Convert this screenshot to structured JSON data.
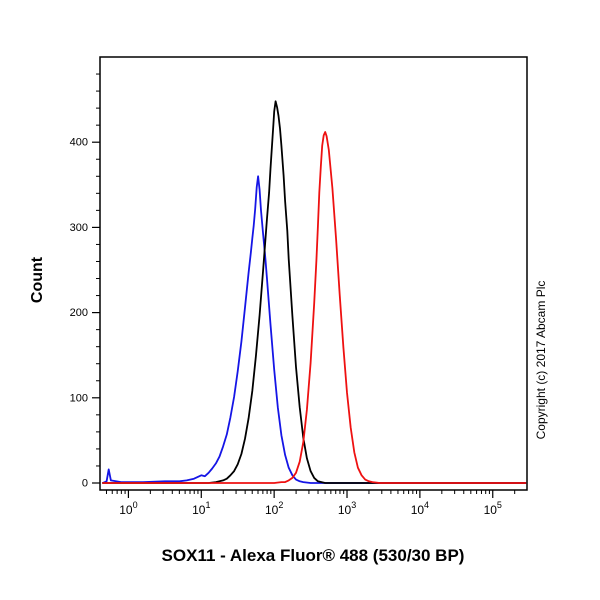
{
  "window": {
    "background": "#ffffff"
  },
  "chart_data": {
    "type": "line",
    "chart_kind": "flow-cytometry-histogram",
    "title": "",
    "xlabel": "SOX11 - Alexa Fluor® 488 (530/30 BP)",
    "ylabel": "Count",
    "copyright": "Copyright (c) 2017 Abcam Plc",
    "x_scale": "log10",
    "x_range_log": [
      -0.39,
      5.47
    ],
    "y_range": [
      0,
      500
    ],
    "y_ticks": [
      0,
      100,
      200,
      300,
      400
    ],
    "y_minor_step": 20,
    "x_ticks": [
      {
        "log": 0,
        "base": "10",
        "exp": "0",
        "label": "10^0"
      },
      {
        "log": 1,
        "base": "10",
        "exp": "1",
        "label": "10^1"
      },
      {
        "log": 2,
        "base": "10",
        "exp": "2",
        "label": "10^2"
      },
      {
        "log": 3,
        "base": "10",
        "exp": "3",
        "label": "10^3"
      },
      {
        "log": 4,
        "base": "10",
        "exp": "4",
        "label": "10^4"
      },
      {
        "log": 5,
        "base": "10",
        "exp": "5",
        "label": "10^5"
      }
    ],
    "grid": false,
    "legend": "none",
    "series": [
      {
        "name": "blue",
        "color": "#1515e6",
        "peak": {
          "x_log": 1.78,
          "count": 360
        },
        "points": [
          [
            -0.35,
            0
          ],
          [
            -0.3,
            2
          ],
          [
            -0.27,
            16
          ],
          [
            -0.24,
            3
          ],
          [
            -0.1,
            1
          ],
          [
            0.2,
            1
          ],
          [
            0.5,
            2
          ],
          [
            0.7,
            2
          ],
          [
            0.8,
            3
          ],
          [
            0.9,
            5
          ],
          [
            1.0,
            9
          ],
          [
            1.05,
            8
          ],
          [
            1.1,
            12
          ],
          [
            1.15,
            17
          ],
          [
            1.2,
            23
          ],
          [
            1.25,
            31
          ],
          [
            1.3,
            43
          ],
          [
            1.35,
            57
          ],
          [
            1.4,
            77
          ],
          [
            1.45,
            101
          ],
          [
            1.5,
            131
          ],
          [
            1.55,
            166
          ],
          [
            1.6,
            206
          ],
          [
            1.65,
            247
          ],
          [
            1.68,
            270
          ],
          [
            1.7,
            287
          ],
          [
            1.72,
            302
          ],
          [
            1.74,
            322
          ],
          [
            1.76,
            347
          ],
          [
            1.78,
            360
          ],
          [
            1.8,
            344
          ],
          [
            1.82,
            320
          ],
          [
            1.85,
            291
          ],
          [
            1.88,
            263
          ],
          [
            1.9,
            241
          ],
          [
            1.95,
            186
          ],
          [
            2.0,
            133
          ],
          [
            2.05,
            89
          ],
          [
            2.1,
            56
          ],
          [
            2.15,
            33
          ],
          [
            2.2,
            18
          ],
          [
            2.25,
            9
          ],
          [
            2.3,
            4
          ],
          [
            2.35,
            2
          ],
          [
            2.4,
            1
          ],
          [
            2.5,
            0
          ],
          [
            5.45,
            0
          ]
        ]
      },
      {
        "name": "black",
        "color": "#000000",
        "peak": {
          "x_log": 2.02,
          "count": 448
        },
        "points": [
          [
            -0.35,
            0
          ],
          [
            1.1,
            0
          ],
          [
            1.2,
            1
          ],
          [
            1.3,
            3
          ],
          [
            1.35,
            5
          ],
          [
            1.4,
            9
          ],
          [
            1.45,
            14
          ],
          [
            1.5,
            22
          ],
          [
            1.55,
            34
          ],
          [
            1.6,
            52
          ],
          [
            1.65,
            76
          ],
          [
            1.7,
            108
          ],
          [
            1.75,
            149
          ],
          [
            1.8,
            197
          ],
          [
            1.85,
            251
          ],
          [
            1.9,
            309
          ],
          [
            1.93,
            341
          ],
          [
            1.95,
            369
          ],
          [
            1.97,
            396
          ],
          [
            1.99,
            421
          ],
          [
            2.0,
            436
          ],
          [
            2.02,
            448
          ],
          [
            2.04,
            441
          ],
          [
            2.06,
            431
          ],
          [
            2.08,
            416
          ],
          [
            2.1,
            396
          ],
          [
            2.13,
            361
          ],
          [
            2.15,
            331
          ],
          [
            2.18,
            296
          ],
          [
            2.2,
            263
          ],
          [
            2.25,
            196
          ],
          [
            2.3,
            136
          ],
          [
            2.35,
            89
          ],
          [
            2.4,
            53
          ],
          [
            2.45,
            29
          ],
          [
            2.5,
            14
          ],
          [
            2.55,
            6
          ],
          [
            2.6,
            2
          ],
          [
            2.65,
            1
          ],
          [
            2.7,
            0
          ],
          [
            5.45,
            0
          ]
        ]
      },
      {
        "name": "red",
        "color": "#ee1111",
        "peak": {
          "x_log": 2.7,
          "count": 412
        },
        "points": [
          [
            -0.35,
            0
          ],
          [
            2.0,
            0
          ],
          [
            2.1,
            1
          ],
          [
            2.15,
            1
          ],
          [
            2.2,
            3
          ],
          [
            2.25,
            6
          ],
          [
            2.3,
            12
          ],
          [
            2.35,
            25
          ],
          [
            2.4,
            48
          ],
          [
            2.45,
            86
          ],
          [
            2.5,
            141
          ],
          [
            2.55,
            211
          ],
          [
            2.58,
            261
          ],
          [
            2.6,
            301
          ],
          [
            2.62,
            341
          ],
          [
            2.64,
            371
          ],
          [
            2.66,
            396
          ],
          [
            2.68,
            408
          ],
          [
            2.7,
            412
          ],
          [
            2.72,
            407
          ],
          [
            2.75,
            391
          ],
          [
            2.8,
            346
          ],
          [
            2.85,
            286
          ],
          [
            2.9,
            221
          ],
          [
            2.95,
            159
          ],
          [
            3.0,
            106
          ],
          [
            3.05,
            65
          ],
          [
            3.1,
            36
          ],
          [
            3.15,
            18
          ],
          [
            3.2,
            9
          ],
          [
            3.25,
            4
          ],
          [
            3.3,
            2
          ],
          [
            3.35,
            1
          ],
          [
            3.45,
            0
          ],
          [
            5.45,
            0
          ]
        ]
      }
    ]
  }
}
